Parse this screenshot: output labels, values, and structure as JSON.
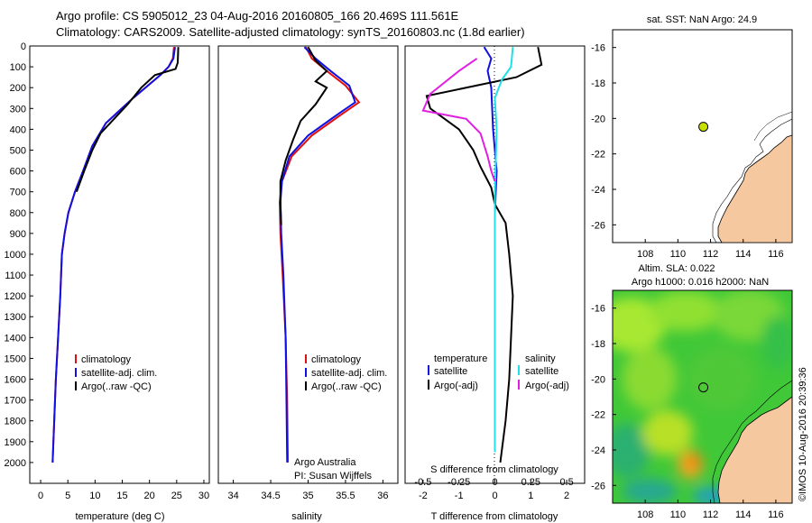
{
  "header": {
    "line1": "Argo profile: CS 5905012_23 04-Aug-2016 20160805_166 20.469S 111.561E",
    "line2": "Climatology: CARS2009. Satellite-adjusted climatology: synTS_20160803.nc (1.8d earlier)"
  },
  "colors": {
    "climatology": "#e01010",
    "satellite": "#1010e0",
    "argo": "#000000",
    "sat_salinity": "#20e0e8",
    "argo_salinity": "#e020e0",
    "land": "#f5c8a0",
    "marker": "#c8e000"
  },
  "chart_data": [
    {
      "type": "line",
      "id": "temperature",
      "xlabel": "temperature (deg C)",
      "ylabel": "",
      "xlim": [
        -2,
        31
      ],
      "ylim": [
        2100,
        0
      ],
      "x_ticks": [
        "0",
        "5",
        "10",
        "15",
        "20",
        "25",
        "30"
      ],
      "y_ticks": [
        "0",
        "100",
        "200",
        "300",
        "400",
        "500",
        "600",
        "700",
        "800",
        "900",
        "1000",
        "1100",
        "1200",
        "1300",
        "1400",
        "1500",
        "1600",
        "1700",
        "1800",
        "1900",
        "2000"
      ],
      "legend": [
        "climatology",
        "satellite-adj. clim.",
        "Argo(..raw -QC)"
      ],
      "series": [
        {
          "name": "climatology",
          "color": "#e01010",
          "points": [
            [
              24.5,
              5
            ],
            [
              24.3,
              60
            ],
            [
              23.5,
              100
            ],
            [
              22,
              140
            ],
            [
              17,
              250
            ],
            [
              12,
              370
            ],
            [
              9.5,
              480
            ],
            [
              7.8,
              600
            ],
            [
              6.3,
              700
            ],
            [
              5.1,
              800
            ],
            [
              4.4,
              900
            ],
            [
              3.9,
              1000
            ],
            [
              3.6,
              1200
            ],
            [
              3.2,
              1400
            ],
            [
              2.8,
              1600
            ],
            [
              2.5,
              1800
            ],
            [
              2.2,
              2000
            ]
          ]
        },
        {
          "name": "satellite-adj. clim.",
          "color": "#1010e0",
          "points": [
            [
              24.7,
              5
            ],
            [
              24.4,
              60
            ],
            [
              23.5,
              100
            ],
            [
              22,
              140
            ],
            [
              17,
              250
            ],
            [
              12,
              370
            ],
            [
              9.5,
              480
            ],
            [
              7.8,
              600
            ],
            [
              6.3,
              700
            ],
            [
              5.1,
              800
            ],
            [
              4.4,
              900
            ],
            [
              3.9,
              1000
            ],
            [
              3.6,
              1200
            ],
            [
              3.2,
              1400
            ],
            [
              2.8,
              1600
            ],
            [
              2.5,
              1800
            ],
            [
              2.2,
              2000
            ]
          ]
        },
        {
          "name": "Argo(..raw -QC)",
          "color": "#000000",
          "points": [
            [
              25.3,
              5
            ],
            [
              25.2,
              80
            ],
            [
              24.8,
              110
            ],
            [
              21,
              140
            ],
            [
              18.5,
              200
            ],
            [
              16,
              280
            ],
            [
              13.5,
              350
            ],
            [
              11,
              420
            ],
            [
              9.5,
              500
            ],
            [
              8,
              600
            ],
            [
              6.6,
              700
            ]
          ]
        }
      ]
    },
    {
      "type": "line",
      "id": "salinity",
      "xlabel": "salinity",
      "ylabel": "",
      "xlim": [
        33.8,
        36.2
      ],
      "ylim": [
        2100,
        0
      ],
      "x_ticks": [
        "34",
        "34.5",
        "35",
        "35.5",
        "36"
      ],
      "legend": [
        "climatology",
        "satellite-adj. clim.",
        "Argo(..raw -QC)"
      ],
      "annotation": [
        "Argo Australia",
        "PI: Susan Wijffels"
      ],
      "series": [
        {
          "name": "climatology",
          "color": "#e01010",
          "points": [
            [
              34.97,
              5
            ],
            [
              35.05,
              60
            ],
            [
              35.25,
              120
            ],
            [
              35.5,
              190
            ],
            [
              35.68,
              270
            ],
            [
              35.4,
              340
            ],
            [
              35.05,
              430
            ],
            [
              34.78,
              530
            ],
            [
              34.65,
              650
            ],
            [
              34.62,
              750
            ],
            [
              34.63,
              900
            ],
            [
              34.66,
              1100
            ],
            [
              34.7,
              1400
            ],
            [
              34.72,
              1700
            ],
            [
              34.73,
              2000
            ]
          ]
        },
        {
          "name": "satellite-adj. clim.",
          "color": "#1010e0",
          "points": [
            [
              34.95,
              5
            ],
            [
              35.1,
              60
            ],
            [
              35.3,
              120
            ],
            [
              35.55,
              190
            ],
            [
              35.63,
              270
            ],
            [
              35.35,
              340
            ],
            [
              35.0,
              430
            ],
            [
              34.75,
              530
            ],
            [
              34.65,
              650
            ],
            [
              34.63,
              750
            ],
            [
              34.64,
              900
            ],
            [
              34.67,
              1100
            ],
            [
              34.7,
              1400
            ],
            [
              34.71,
              1700
            ],
            [
              34.72,
              2000
            ]
          ]
        },
        {
          "name": "Argo(..raw -QC)",
          "color": "#000000",
          "points": [
            [
              35.0,
              5
            ],
            [
              35.1,
              70
            ],
            [
              35.25,
              120
            ],
            [
              35.1,
              170
            ],
            [
              35.25,
              200
            ],
            [
              35.1,
              280
            ],
            [
              34.9,
              360
            ],
            [
              34.8,
              450
            ],
            [
              34.7,
              550
            ],
            [
              34.63,
              650
            ],
            [
              34.63,
              750
            ],
            [
              34.64,
              860
            ]
          ]
        }
      ]
    },
    {
      "type": "line",
      "id": "difference",
      "xlabel": "T difference from climatology",
      "x2label": "S difference from climatology",
      "xlim": [
        -2.5,
        2.5
      ],
      "ylim": [
        2100,
        0
      ],
      "x_ticks": [
        "-2",
        "-1",
        "0",
        "1",
        "2"
      ],
      "x2_ticks": [
        "-0.5",
        "-0.25",
        "0",
        "0.25",
        "0.5"
      ],
      "legend_titles": [
        "temperature",
        "salinity"
      ],
      "legend": [
        "satellite",
        "Argo(-adj)",
        "satellite",
        "Argo(-adj)"
      ],
      "series": [
        {
          "name": "satellite",
          "color": "#1010e0",
          "points": [
            [
              -0.3,
              5
            ],
            [
              -0.1,
              60
            ],
            [
              -0.2,
              120
            ],
            [
              -0.1,
              200
            ],
            [
              -0.05,
              400
            ],
            [
              0.05,
              600
            ],
            [
              0.0,
              800
            ],
            [
              0.0,
              1000
            ]
          ]
        },
        {
          "name": "Argo(-adj)",
          "color": "#000000",
          "points": [
            [
              1.2,
              5
            ],
            [
              1.3,
              90
            ],
            [
              0.6,
              150
            ],
            [
              -1.9,
              240
            ],
            [
              -1.8,
              300
            ],
            [
              -1.4,
              350
            ],
            [
              -1.0,
              400
            ],
            [
              -0.8,
              450
            ],
            [
              -0.6,
              500
            ],
            [
              -0.4,
              580
            ],
            [
              -0.1,
              680
            ],
            [
              0.0,
              760
            ],
            [
              0.3,
              850
            ],
            [
              0.4,
              1000
            ],
            [
              0.5,
              1200
            ],
            [
              0.45,
              1400
            ],
            [
              0.4,
              1600
            ],
            [
              0.3,
              1800
            ],
            [
              0.15,
              2000
            ]
          ]
        },
        {
          "name": "satellite (salinity)",
          "color": "#20e0e8",
          "points": [
            [
              0.5,
              5
            ],
            [
              0.45,
              100
            ],
            [
              0.2,
              160
            ],
            [
              0.0,
              250
            ],
            [
              0.05,
              400
            ],
            [
              0.0,
              700
            ],
            [
              0.0,
              1000
            ],
            [
              0.0,
              1500
            ],
            [
              0.0,
              1950
            ]
          ]
        },
        {
          "name": "Argo(-adj) (salinity)",
          "color": "#e020e0",
          "points": [
            [
              -0.5,
              60
            ],
            [
              -1.0,
              120
            ],
            [
              -1.8,
              230
            ],
            [
              -2.0,
              310
            ],
            [
              -0.8,
              350
            ],
            [
              -0.4,
              420
            ],
            [
              -0.2,
              530
            ],
            [
              -0.1,
              600
            ],
            [
              0.0,
              650
            ]
          ]
        }
      ]
    },
    {
      "type": "scatter",
      "id": "sst_map",
      "title": "sat. SST: NaN Argo: 24.9",
      "xlim": [
        106,
        117
      ],
      "ylim": [
        -27,
        -15
      ],
      "x_ticks": [
        "108",
        "110",
        "112",
        "114",
        "116"
      ],
      "y_ticks": [
        "-16",
        "-18",
        "-20",
        "-22",
        "-24",
        "-26"
      ],
      "points": [
        [
          111.56,
          -20.47
        ]
      ]
    },
    {
      "type": "heatmap",
      "id": "sla_map",
      "title": "Altim. SLA: 0.022",
      "subtitle": "Argo h1000: 0.016 h2000: NaN",
      "xlim": [
        106,
        117
      ],
      "ylim": [
        -27,
        -15
      ],
      "x_ticks": [
        "108",
        "110",
        "112",
        "114",
        "116"
      ],
      "y_ticks": [
        "-16",
        "-18",
        "-20",
        "-22",
        "-24",
        "-26"
      ],
      "points": [
        [
          111.56,
          -20.47
        ]
      ]
    }
  ],
  "footer": {
    "stamp": "©IMOS 10-Aug-2016 20:39:36"
  }
}
